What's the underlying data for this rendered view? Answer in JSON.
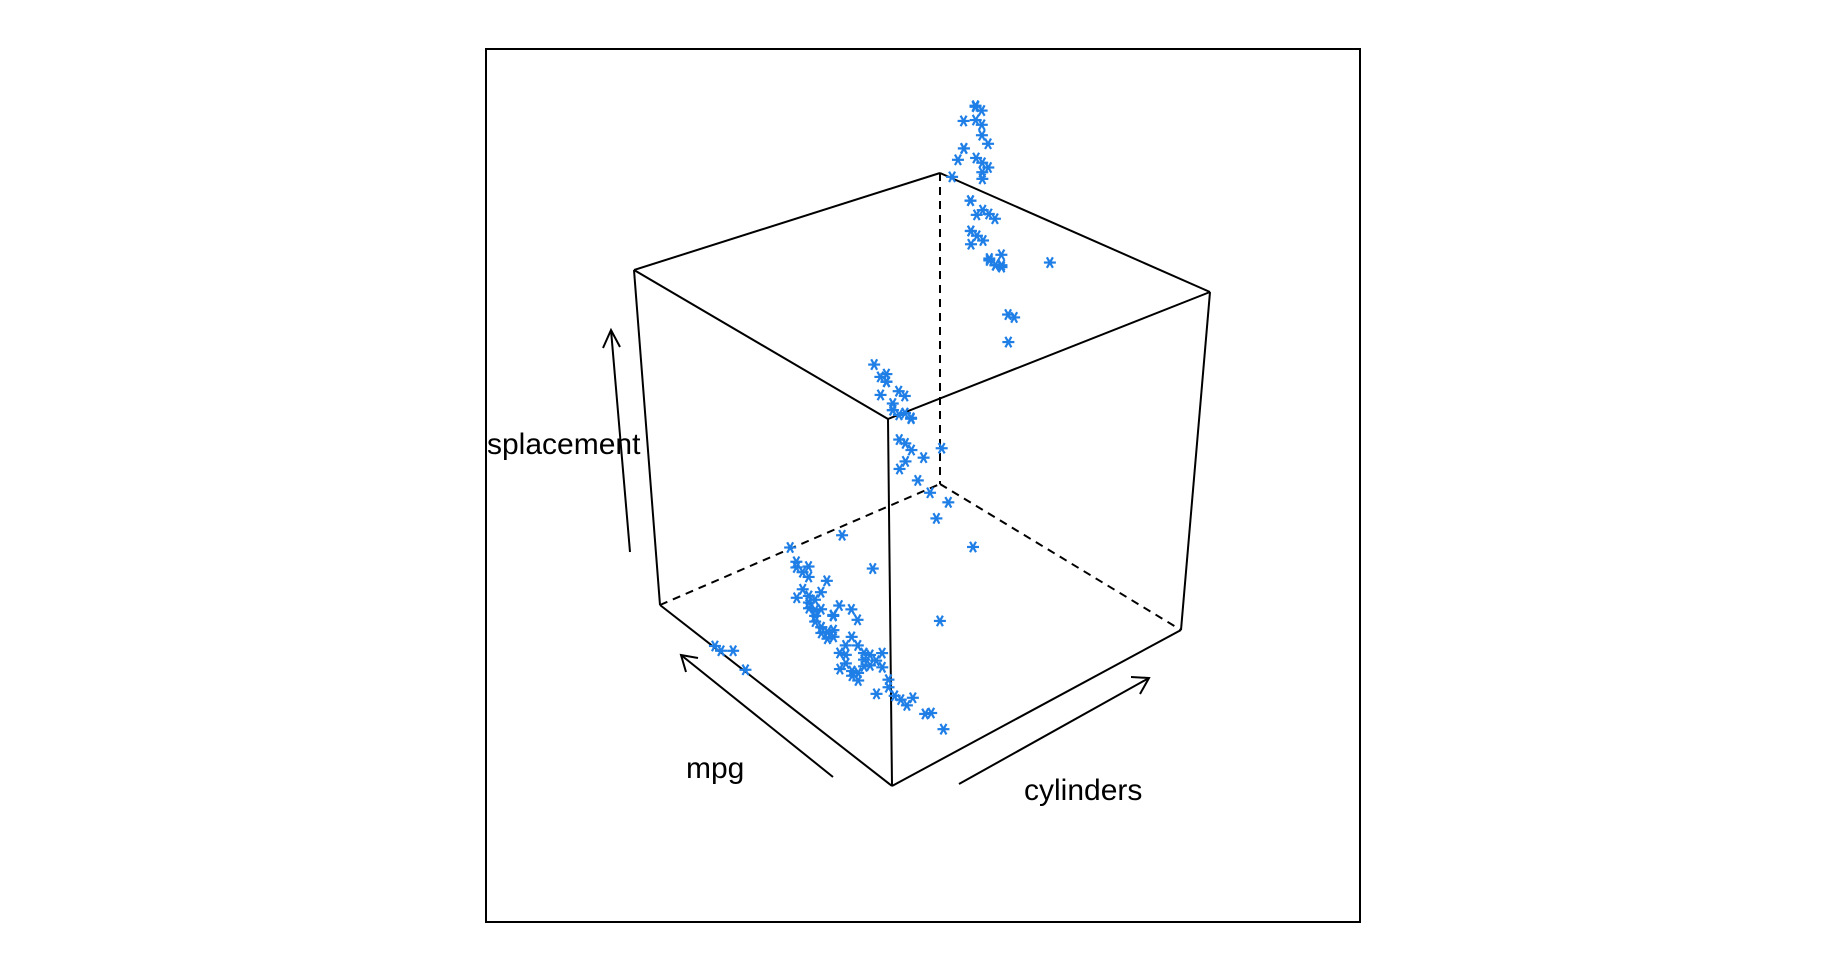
{
  "chart_data": {
    "type": "scatter",
    "projection": "3d",
    "title": "",
    "xlabel": "mpg",
    "ylabel": "cylinders",
    "zlabel": "splacement",
    "marker": "asterisk",
    "color": "#1f7fe6",
    "grid": false,
    "legend": "none",
    "xlim": [
      9,
      47
    ],
    "ylim": [
      3,
      8
    ],
    "zlim": [
      68,
      455
    ],
    "series": [
      {
        "points": [
          [
            18,
            8,
            307
          ],
          [
            15,
            8,
            350
          ],
          [
            18,
            8,
            318
          ],
          [
            16,
            8,
            304
          ],
          [
            17,
            8,
            302
          ],
          [
            15,
            8,
            429
          ],
          [
            14,
            8,
            454
          ],
          [
            14,
            8,
            440
          ],
          [
            14,
            8,
            455
          ],
          [
            15,
            8,
            390
          ],
          [
            15,
            8,
            383
          ],
          [
            14,
            8,
            340
          ],
          [
            15,
            8,
            400
          ],
          [
            14,
            8,
            455
          ],
          [
            10,
            8,
            360
          ],
          [
            11,
            8,
            383
          ],
          [
            13,
            8,
            350
          ],
          [
            12,
            8,
            400
          ],
          [
            13,
            8,
            318
          ],
          [
            16,
            8,
            351
          ],
          [
            13,
            8,
            304
          ],
          [
            14,
            8,
            318
          ],
          [
            12,
            8,
            429
          ],
          [
            13,
            8,
            350
          ],
          [
            16,
            8,
            400
          ],
          [
            17,
            8,
            302
          ],
          [
            19,
            8,
            260
          ],
          [
            18,
            8,
            305
          ],
          [
            15,
            8,
            318
          ],
          [
            20,
            8,
            262
          ],
          [
            26,
            8,
            350
          ],
          [
            16,
            8,
            425
          ],
          [
            13,
            8,
            318
          ],
          [
            15,
            8,
            440
          ],
          [
            12,
            8,
            400
          ],
          [
            17,
            8,
            351
          ],
          [
            14,
            8,
            400
          ],
          [
            15,
            8,
            455
          ],
          [
            16,
            8,
            302
          ],
          [
            19,
            8,
            231
          ],
          [
            22,
            6,
            198
          ],
          [
            21,
            6,
            200
          ],
          [
            18,
            6,
            250
          ],
          [
            19,
            6,
            225
          ],
          [
            21,
            6,
            232
          ],
          [
            18,
            6,
            258
          ],
          [
            20,
            6,
            250
          ],
          [
            17,
            6,
            231
          ],
          [
            22,
            6,
            231
          ],
          [
            20,
            6,
            225
          ],
          [
            19,
            6,
            232
          ],
          [
            18,
            6,
            250
          ],
          [
            16,
            6,
            258
          ],
          [
            24,
            6,
            200
          ],
          [
            19,
            6,
            225
          ],
          [
            21,
            6,
            181
          ],
          [
            26,
            6,
            146
          ],
          [
            23,
            6,
            171
          ],
          [
            20,
            6,
            168
          ],
          [
            25,
            6,
            168
          ],
          [
            17,
            6,
            250
          ],
          [
            21,
            6,
            250
          ],
          [
            22,
            6,
            232
          ],
          [
            18,
            6,
            250
          ],
          [
            27,
            6,
            225
          ],
          [
            20,
            6,
            199
          ],
          [
            28,
            6,
            173
          ],
          [
            32,
            6,
            146
          ],
          [
            19,
            3,
            70
          ],
          [
            18,
            3,
            70
          ],
          [
            23,
            3,
            70
          ],
          [
            21,
            3,
            80
          ],
          [
            20,
            5,
            131
          ],
          [
            25,
            5,
            121
          ],
          [
            36,
            5,
            121
          ],
          [
            24,
            4,
            113
          ],
          [
            27,
            4,
            97
          ],
          [
            26,
            4,
            97
          ],
          [
            25,
            4,
            110
          ],
          [
            24,
            4,
            107
          ],
          [
            28,
            4,
            104
          ],
          [
            25,
            4,
            121
          ],
          [
            26,
            4,
            97
          ],
          [
            31,
            4,
            71
          ],
          [
            35,
            4,
            72
          ],
          [
            27,
            4,
            97
          ],
          [
            29,
            4,
            68
          ],
          [
            32,
            4,
            79
          ],
          [
            30,
            4,
            79
          ],
          [
            28,
            4,
            97
          ],
          [
            24,
            4,
            120
          ],
          [
            22,
            4,
            108
          ],
          [
            26,
            4,
            91
          ],
          [
            33,
            4,
            98
          ],
          [
            32,
            4,
            71
          ],
          [
            30,
            4,
            88
          ],
          [
            31,
            4,
            76
          ],
          [
            34,
            4,
            97
          ],
          [
            29,
            4,
            85
          ],
          [
            25,
            4,
            98
          ],
          [
            27,
            4,
            90
          ],
          [
            23,
            4,
            122
          ],
          [
            22,
            4,
            140
          ],
          [
            21,
            4,
            156
          ],
          [
            26,
            4,
            134
          ],
          [
            36,
            4,
            105
          ],
          [
            37,
            4,
            89
          ],
          [
            33,
            4,
            91
          ],
          [
            38,
            4,
            85
          ],
          [
            32,
            4,
            108
          ],
          [
            31,
            4,
            112
          ],
          [
            35,
            4,
            107
          ],
          [
            34,
            4,
            108
          ],
          [
            28,
            4,
            119
          ],
          [
            39,
            4,
            86
          ],
          [
            29,
            4,
            135
          ],
          [
            27,
            4,
            151
          ],
          [
            24,
            4,
            151
          ],
          [
            23,
            4,
            140
          ],
          [
            30,
            4,
            98
          ],
          [
            44,
            4,
            97
          ],
          [
            46,
            4,
            90
          ],
          [
            43,
            4,
            91
          ],
          [
            41,
            4,
            98
          ],
          [
            40,
            4,
            85
          ],
          [
            37,
            4,
            97
          ],
          [
            36,
            4,
            120
          ],
          [
            32,
            4,
            135
          ],
          [
            28,
            4,
            120
          ],
          [
            31,
            4,
            141
          ],
          [
            33,
            4,
            105
          ],
          [
            26,
            4,
            116
          ],
          [
            25,
            4,
            104
          ],
          [
            24,
            4,
            140
          ],
          [
            22,
            4,
            146
          ]
        ]
      }
    ]
  }
}
